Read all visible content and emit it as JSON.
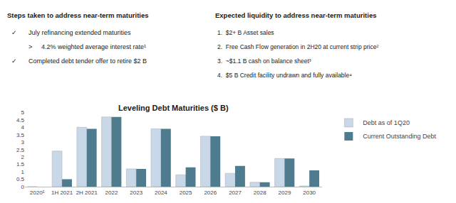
{
  "chart_data": {
    "type": "bar",
    "title": "Leveling Debt Maturities ($ B)",
    "categories": [
      "2020⁵",
      "1H 2021",
      "2H 2021",
      "2022",
      "2023",
      "2024",
      "2025",
      "2026",
      "2027",
      "2028",
      "2029",
      "2030"
    ],
    "series": [
      {
        "name": "Debt as of 1Q20",
        "color": "#c8d8e8",
        "values": [
          0.0,
          2.4,
          4.0,
          4.7,
          1.2,
          3.9,
          0.8,
          3.4,
          0.9,
          0.3,
          1.9,
          0.05
        ]
      },
      {
        "name": "Current Outstanding Debt",
        "color": "#4e7b8e",
        "values": [
          0.0,
          0.5,
          3.9,
          4.7,
          1.2,
          3.9,
          1.3,
          3.4,
          1.4,
          0.3,
          1.9,
          1.1
        ]
      }
    ],
    "ylim": [
      0,
      5
    ],
    "yticks": [
      0,
      0.5,
      1,
      1.5,
      2,
      2.5,
      3,
      3.5,
      4,
      4.5,
      5
    ],
    "grid": false,
    "legend": "right",
    "annotations": [
      "Steps taken to address near-term maturities",
      "✓",
      "July refinancing extended maturities",
      ">",
      "4.2% weighted average interest rate¹",
      "✓",
      "Completed debt tender offer to retire $2 B",
      "Expected liquidity to address near-term maturities",
      "1.  $2+ B Asset sales",
      "2.  Free Cash Flow generation in 2H20 at current strip price²",
      "3.  ~$1.1 B cash on balance sheet³",
      "4.  $5 B Credit facility undrawn and fully available⁴"
    ]
  }
}
